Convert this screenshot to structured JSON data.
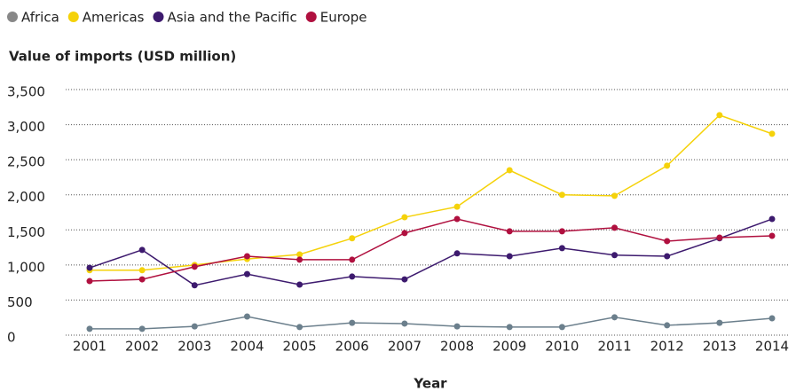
{
  "chart_data": {
    "type": "line",
    "y_title": "Value of imports (USD million)",
    "x_title": "Year",
    "categories": [
      "2001",
      "2002",
      "2003",
      "2004",
      "2005",
      "2006",
      "2007",
      "2008",
      "2009",
      "2010",
      "2011",
      "2012",
      "2013",
      "2014"
    ],
    "series": [
      {
        "name": "Africa",
        "color": "#888888",
        "line_color": "#6b7f8c",
        "values": [
          90,
          90,
          125,
          265,
          115,
          175,
          165,
          125,
          115,
          115,
          255,
          140,
          175,
          240
        ]
      },
      {
        "name": "Americas",
        "color": "#f5d20a",
        "line_color": "#f5d20a",
        "values": [
          925,
          925,
          1000,
          1085,
          1150,
          1380,
          1680,
          1830,
          2350,
          2000,
          1985,
          2415,
          3135,
          2870
        ]
      },
      {
        "name": "Asia and the Pacific",
        "color": "#3d1a6e",
        "line_color": "#3d1a6e",
        "values": [
          960,
          1215,
          710,
          870,
          720,
          835,
          795,
          1165,
          1125,
          1240,
          1140,
          1125,
          1380,
          1655
        ]
      },
      {
        "name": "Europe",
        "color": "#b0103f",
        "line_color": "#b0103f",
        "values": [
          770,
          795,
          975,
          1125,
          1075,
          1075,
          1455,
          1655,
          1480,
          1480,
          1530,
          1340,
          1390,
          1415
        ]
      }
    ],
    "ylim": [
      0,
      3500
    ],
    "yticks": [
      0,
      500,
      {
        "value": 1000,
        "label": "1,000"
      },
      {
        "value": 1500,
        "label": "1,500"
      },
      {
        "value": 2000,
        "label": "2,000"
      },
      {
        "value": 2500,
        "label": "2,500"
      },
      {
        "value": 3000,
        "label": "3,000"
      },
      {
        "value": 3500,
        "label": "3,500"
      }
    ],
    "grid": true
  }
}
